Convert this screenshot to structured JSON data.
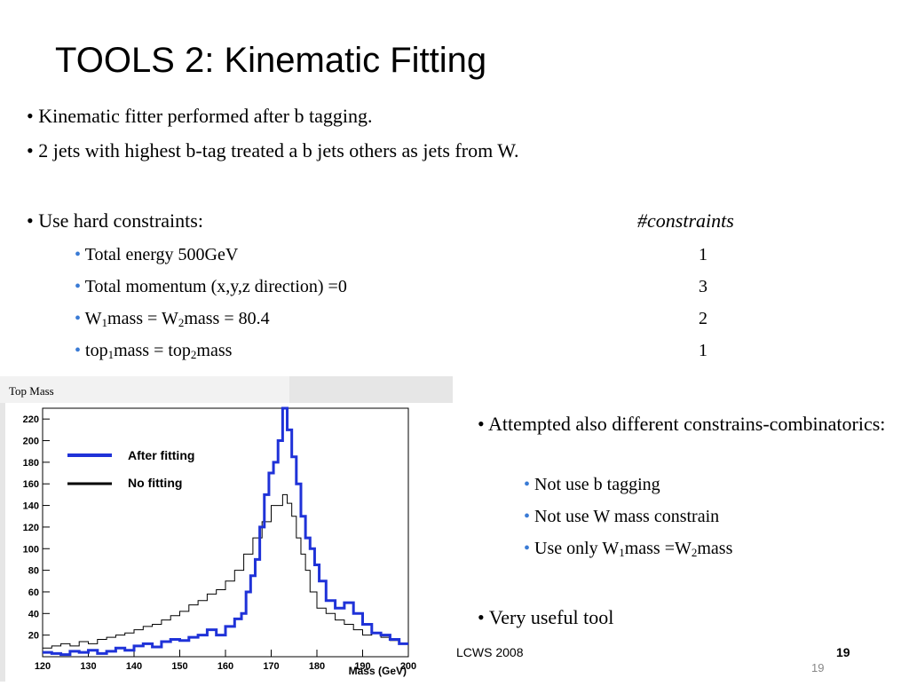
{
  "slide": {
    "title": "TOOLS 2: Kinematic Fitting",
    "bullets": [
      "Kinematic fitter performed after b tagging.",
      "2 jets with highest b-tag treated a b jets others as jets from W.",
      "Use hard constraints:"
    ],
    "constraints_header": "#constraints",
    "constraints": [
      {
        "label": "Total energy 500GeV",
        "count": "1"
      },
      {
        "label": "Total momentum (x,y,z direction) =0",
        "count": "3"
      },
      {
        "label_parts": [
          "W",
          "1",
          "mass = W",
          "2",
          "mass = 80.4"
        ],
        "count": "2"
      },
      {
        "label_parts": [
          "top",
          "1",
          "mass = top",
          "2",
          "mass"
        ],
        "count": "1"
      }
    ],
    "right_bullets": {
      "attempted": "Attempted also different  constrains-combinatorics:",
      "sub": [
        "Not use b tagging",
        "Not use W mass constrain"
      ],
      "sub3_parts": [
        "Use only W",
        "1",
        "mass =W",
        "2",
        "mass"
      ],
      "useful": "Very useful tool"
    },
    "bullet_char": "•",
    "footer": {
      "conference": "LCWS 2008",
      "page_bold": "19",
      "page": "19"
    }
  },
  "chart_data": {
    "type": "line",
    "title": "Top Mass",
    "xlabel": "Mass (GeV)",
    "ylabel": "",
    "xlim": [
      120,
      200
    ],
    "ylim": [
      0,
      230
    ],
    "xticks": [
      "120",
      "130",
      "140",
      "150",
      "160",
      "170",
      "180",
      "190",
      "200"
    ],
    "yticks": [
      "20",
      "40",
      "60",
      "80",
      "100",
      "120",
      "140",
      "160",
      "180",
      "200",
      "220"
    ],
    "legend": "top-left",
    "series": [
      {
        "name": "After fitting",
        "color": "#1f32d8",
        "x": [
          121,
          123,
          125,
          127,
          129,
          131,
          133,
          135,
          137,
          139,
          141,
          143,
          145,
          147,
          149,
          151,
          153,
          155,
          157,
          159,
          161,
          163,
          164,
          165,
          166,
          167,
          168,
          169,
          170,
          171,
          172,
          173,
          174,
          175,
          176,
          177,
          178,
          179,
          180,
          181,
          183,
          185,
          187,
          189,
          191,
          193,
          195,
          197,
          199
        ],
        "values": [
          4,
          3,
          2,
          5,
          4,
          6,
          3,
          5,
          8,
          6,
          10,
          12,
          9,
          14,
          16,
          15,
          18,
          20,
          25,
          20,
          28,
          35,
          40,
          60,
          75,
          90,
          120,
          150,
          170,
          180,
          200,
          230,
          210,
          185,
          160,
          130,
          110,
          100,
          85,
          70,
          52,
          45,
          50,
          40,
          30,
          22,
          20,
          16,
          12
        ]
      },
      {
        "name": "No fitting",
        "color": "#000000",
        "x": [
          121,
          123,
          125,
          127,
          129,
          131,
          133,
          135,
          137,
          139,
          141,
          143,
          145,
          147,
          149,
          151,
          153,
          155,
          157,
          159,
          161,
          163,
          165,
          167,
          169,
          171,
          172,
          173,
          174,
          175,
          176,
          177,
          178,
          179,
          181,
          183,
          185,
          187,
          189,
          191,
          193,
          195,
          197,
          199
        ],
        "values": [
          8,
          10,
          12,
          10,
          14,
          12,
          16,
          18,
          20,
          22,
          25,
          28,
          30,
          34,
          38,
          42,
          48,
          52,
          58,
          62,
          70,
          80,
          95,
          110,
          125,
          140,
          140,
          150,
          142,
          130,
          110,
          95,
          80,
          60,
          45,
          40,
          34,
          30,
          25,
          20,
          22,
          18,
          15,
          12
        ]
      }
    ]
  }
}
